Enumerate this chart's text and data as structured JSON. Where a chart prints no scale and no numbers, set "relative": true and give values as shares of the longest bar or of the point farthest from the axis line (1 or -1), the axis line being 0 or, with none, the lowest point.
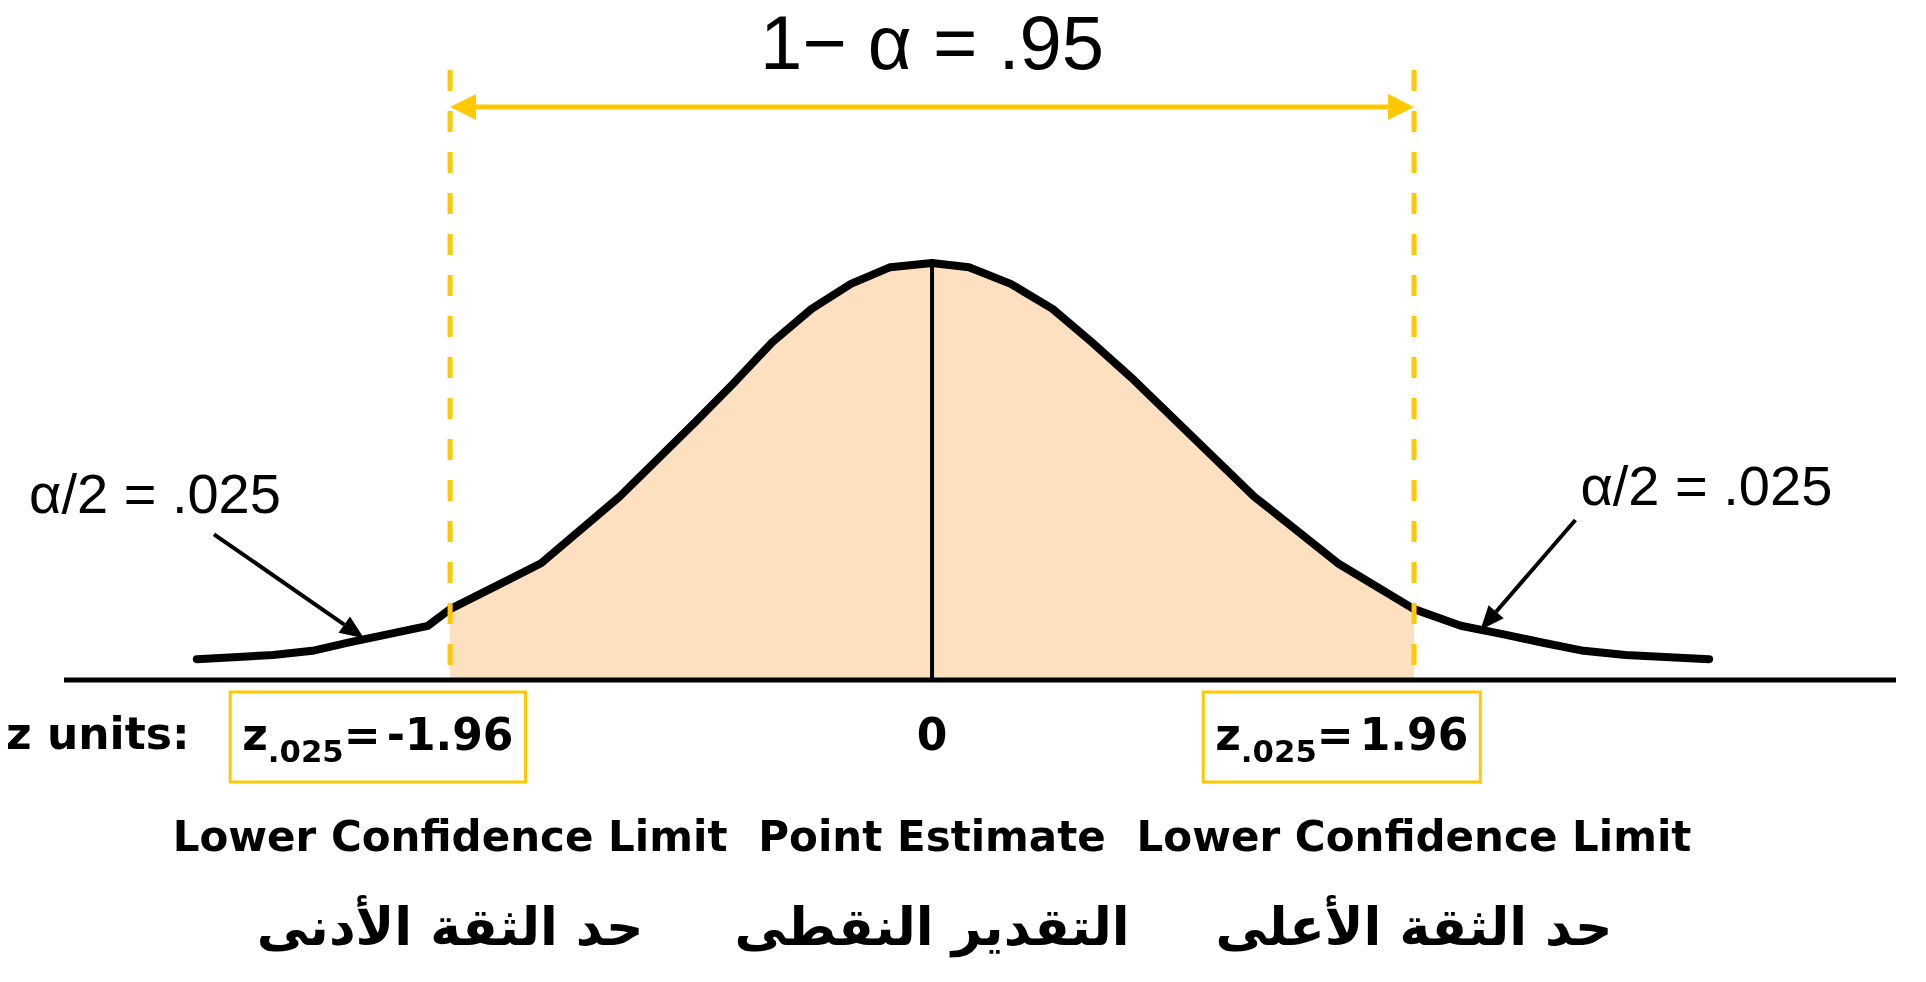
{
  "chart_data": {
    "type": "area",
    "relative": true,
    "xlabel": "z units:",
    "xlim": [
      -3.53,
      3.92
    ],
    "xticks": [
      -1.96,
      0,
      1.96
    ],
    "series": [
      {
        "color": "#fce0bf",
        "x": [
          -1.96,
          -1.59,
          -1.27,
          -0.96,
          -0.81,
          -0.65,
          -0.49,
          -0.33,
          -0.17,
          0,
          0.15,
          0.32,
          0.49,
          0.65,
          0.82,
          1.31,
          1.65,
          1.96
        ],
        "values": [
          0.17,
          0.28,
          0.44,
          0.62,
          0.71,
          0.81,
          0.89,
          0.95,
          0.99,
          1,
          0.99,
          0.95,
          0.89,
          0.81,
          0.72,
          0.44,
          0.28,
          0.17
        ]
      },
      {
        "type": "line",
        "color": "#000000",
        "x": [
          -2.99,
          -2.68,
          -2.52,
          -2.37,
          -2.21,
          -2.05,
          -1.96,
          -1.59,
          -1.27,
          -0.96,
          -0.81,
          -0.65,
          -0.49,
          -0.33,
          -0.17,
          0,
          0.15,
          0.32,
          0.49,
          0.65,
          0.82,
          1.31,
          1.65,
          1.96,
          2.15,
          2.32,
          2.48,
          2.65,
          2.82,
          3.16
        ],
        "values": [
          0.05,
          0.06,
          0.07,
          0.09,
          0.11,
          0.13,
          0.17,
          0.28,
          0.44,
          0.62,
          0.71,
          0.81,
          0.89,
          0.95,
          0.99,
          1,
          0.99,
          0.95,
          0.89,
          0.81,
          0.72,
          0.44,
          0.28,
          0.17,
          0.13,
          0.11,
          0.09,
          0.07,
          0.06,
          0.05
        ]
      }
    ],
    "ref_lines": [
      {
        "axis": "x",
        "value": -1.96,
        "color": "#ffc800",
        "line_style": "dashed"
      },
      {
        "axis": "x",
        "value": 1.96,
        "color": "#ffc800",
        "line_style": "dashed"
      },
      {
        "axis": "x",
        "value": 0,
        "color": "#000000",
        "line_style": "solid"
      }
    ],
    "annotations": [
      "1− α = .95",
      {
        "text": "α/2 = .025",
        "x": -2.31,
        "y": 0.1
      },
      {
        "text": "α/2 = .025",
        "x": 2.23,
        "y": 0.12
      },
      "z$_{.025}$=",
      "z$_{.025}$=",
      "Lower Confidence Limit",
      "حد الثقة الأدنى",
      "Point Estimate",
      "التقدير النقطى",
      "Lower Confidence Limit",
      "حد الثقة الأعلى"
    ]
  }
}
